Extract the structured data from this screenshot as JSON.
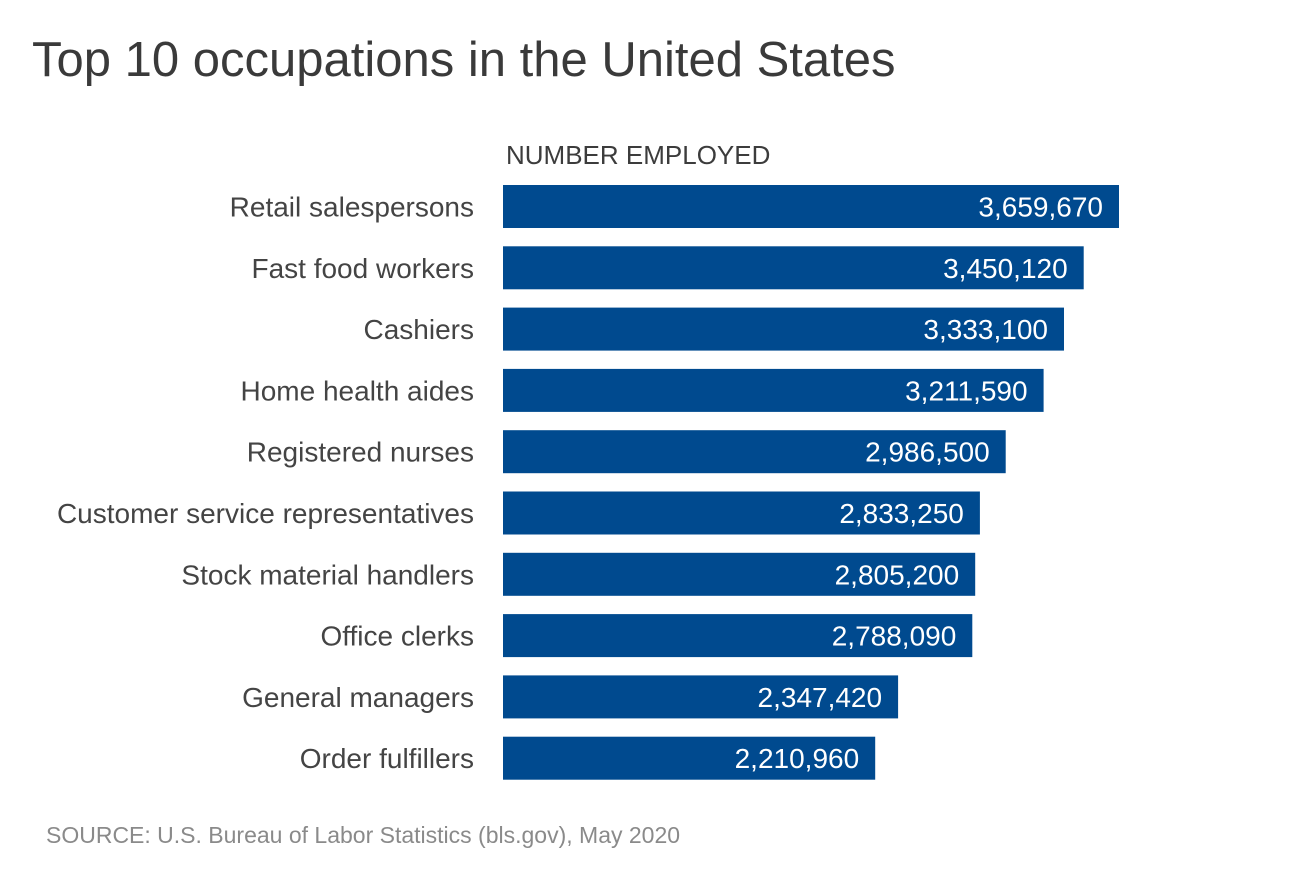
{
  "chart_data": {
    "type": "bar",
    "orientation": "horizontal",
    "title": "Top 10 occupations in the United States",
    "value_header": "NUMBER EMPLOYED",
    "categories": [
      "Retail salespersons",
      "Fast food workers",
      "Cashiers",
      "Home health aides",
      "Registered nurses",
      "Customer service representatives",
      "Stock material handlers",
      "Office clerks",
      "General managers",
      "Order fulfillers"
    ],
    "values": [
      3659670,
      3450120,
      3333100,
      3211590,
      2986500,
      2833250,
      2805200,
      2788090,
      2347420,
      2210960
    ],
    "value_labels": [
      "3,659,670",
      "3,450,120",
      "3,333,100",
      "3,211,590",
      "2,986,500",
      "2,833,250",
      "2,805,200",
      "2,788,090",
      "2,347,420",
      "2,210,960"
    ],
    "bar_color": "#004a8f",
    "source": "SOURCE: U.S. Bureau of Labor Statistics (bls.gov), May 2020"
  }
}
